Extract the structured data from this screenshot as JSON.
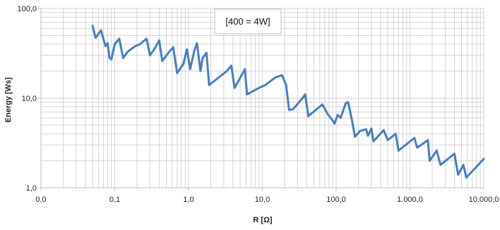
{
  "chart_data": {
    "type": "line",
    "x_scale": "log",
    "y_scale": "log",
    "xlabel": "R [Ω]",
    "ylabel": "Energy [Ws]",
    "xlim": [
      0.01,
      10000
    ],
    "ylim": [
      1,
      100
    ],
    "x_ticks": [
      {
        "value": 0.01,
        "label": "0,0"
      },
      {
        "value": 0.1,
        "label": "0,1"
      },
      {
        "value": 1,
        "label": "1,0"
      },
      {
        "value": 10,
        "label": "10,0"
      },
      {
        "value": 100,
        "label": "100,0"
      },
      {
        "value": 1000,
        "label": "1.000,0"
      },
      {
        "value": 10000,
        "label": "10.000,0"
      }
    ],
    "y_ticks": [
      {
        "value": 1,
        "label": "1,0"
      },
      {
        "value": 10,
        "label": "10,0"
      },
      {
        "value": 100,
        "label": "100,0"
      }
    ],
    "grid": true,
    "annotation": "[400 = 4W]",
    "series": [
      {
        "color": "#4a7ebb",
        "points": [
          [
            0.05,
            64
          ],
          [
            0.055,
            47
          ],
          [
            0.065,
            57
          ],
          [
            0.075,
            38
          ],
          [
            0.08,
            41
          ],
          [
            0.085,
            28
          ],
          [
            0.09,
            27
          ],
          [
            0.1,
            40
          ],
          [
            0.115,
            46
          ],
          [
            0.13,
            28
          ],
          [
            0.15,
            33
          ],
          [
            0.19,
            38
          ],
          [
            0.22,
            40
          ],
          [
            0.27,
            46
          ],
          [
            0.3,
            30
          ],
          [
            0.35,
            36
          ],
          [
            0.4,
            44
          ],
          [
            0.44,
            26
          ],
          [
            0.55,
            33
          ],
          [
            0.62,
            37
          ],
          [
            0.7,
            19
          ],
          [
            0.85,
            24
          ],
          [
            0.95,
            35
          ],
          [
            1.05,
            21
          ],
          [
            1.2,
            34
          ],
          [
            1.3,
            41
          ],
          [
            1.45,
            20
          ],
          [
            1.55,
            28
          ],
          [
            1.75,
            32
          ],
          [
            1.9,
            14
          ],
          [
            3.3,
            20
          ],
          [
            3.8,
            23
          ],
          [
            4.2,
            13
          ],
          [
            5.8,
            21
          ],
          [
            6.2,
            11
          ],
          [
            9.0,
            13
          ],
          [
            11.0,
            14
          ],
          [
            15.0,
            17
          ],
          [
            18.5,
            18
          ],
          [
            21.0,
            14
          ],
          [
            23.0,
            7.4
          ],
          [
            26.0,
            7.5
          ],
          [
            35.0,
            10.0
          ],
          [
            38.0,
            11.0
          ],
          [
            42.0,
            6.3
          ],
          [
            65.0,
            8.5
          ],
          [
            78.0,
            6.5
          ],
          [
            90.0,
            5.6
          ],
          [
            95.0,
            5.2
          ],
          [
            105.0,
            6.5
          ],
          [
            115.0,
            6.0
          ],
          [
            135.0,
            8.8
          ],
          [
            145.0,
            9.0
          ],
          [
            150.0,
            8.0
          ],
          [
            165.0,
            5.5
          ],
          [
            180.0,
            3.7
          ],
          [
            210.0,
            4.3
          ],
          [
            255.0,
            4.5
          ],
          [
            270.0,
            3.8
          ],
          [
            300.0,
            4.6
          ],
          [
            320.0,
            3.3
          ],
          [
            440.0,
            4.4
          ],
          [
            500.0,
            3.4
          ],
          [
            640.0,
            4.0
          ],
          [
            700.0,
            2.6
          ],
          [
            1150.0,
            3.6
          ],
          [
            1250.0,
            2.8
          ],
          [
            1750.0,
            3.4
          ],
          [
            1850.0,
            2.0
          ],
          [
            2300.0,
            2.6
          ],
          [
            2600.0,
            1.8
          ],
          [
            4000.0,
            2.4
          ],
          [
            4500.0,
            1.4
          ],
          [
            5300.0,
            1.8
          ],
          [
            5800.0,
            1.3
          ],
          [
            10000.0,
            2.1
          ]
        ]
      }
    ]
  },
  "colors": {
    "background": "#ffffff",
    "grid": "#d3d3d3",
    "axis": "#bfbfbf",
    "line": "#4a7ebb",
    "annotation_border": "#bfbfbf"
  }
}
